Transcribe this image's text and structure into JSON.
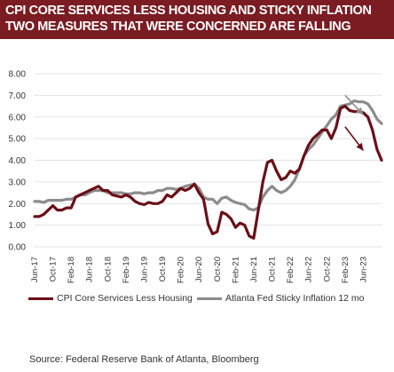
{
  "title": {
    "line1": "CPI CORE SERVICES LESS HOUSING AND STICKY INFLATION",
    "line2": "TWO MEASURES THAT WERE CONCERNED ARE FALLING"
  },
  "source": "Source: Federal Reserve Bank of Atlanta, Bloomberg",
  "colors": {
    "title_bg": "#7a1c22",
    "series1": "#6b0f17",
    "series2": "#8c8c8c",
    "grid": "#e3e3e3"
  },
  "chart_data": {
    "type": "line",
    "title": "",
    "xlabel": "",
    "ylabel": "",
    "ylim": [
      0,
      8
    ],
    "yticks": [
      "0.00",
      "1.00",
      "2.00",
      "3.00",
      "4.00",
      "5.00",
      "6.00",
      "7.00",
      "8.00"
    ],
    "xticks": [
      "Jun-17",
      "Oct-17",
      "Feb-18",
      "Jun-18",
      "Oct-18",
      "Feb-19",
      "Jun-19",
      "Oct-19",
      "Feb-20",
      "Jun-20",
      "Oct-20",
      "Feb-21",
      "Jun-21",
      "Oct-21",
      "Feb-22",
      "Jun-22",
      "Oct-22",
      "Feb-23",
      "Jun-23"
    ],
    "x_start": "Jun-17",
    "grid": true,
    "legend": "bottom",
    "series": [
      {
        "name": "CPI Core Services Less Housing",
        "color": "#6b0f17",
        "values": [
          1.4,
          1.4,
          1.5,
          1.7,
          1.9,
          1.7,
          1.7,
          1.8,
          1.8,
          2.3,
          2.4,
          2.5,
          2.6,
          2.7,
          2.8,
          2.6,
          2.6,
          2.4,
          2.35,
          2.3,
          2.4,
          2.3,
          2.1,
          2.0,
          1.95,
          2.05,
          2.0,
          2.0,
          2.1,
          2.4,
          2.3,
          2.5,
          2.7,
          2.6,
          2.7,
          2.9,
          2.5,
          2.2,
          1.05,
          0.6,
          0.7,
          1.6,
          1.5,
          1.3,
          0.9,
          1.1,
          1.0,
          0.5,
          0.4,
          1.7,
          3.0,
          3.9,
          4.0,
          3.5,
          3.1,
          3.2,
          3.5,
          3.4,
          3.6,
          4.2,
          4.7,
          5.0,
          5.2,
          5.4,
          5.4,
          5.0,
          5.5,
          6.4,
          6.5,
          6.3,
          6.25,
          6.25,
          6.2,
          6.0,
          5.4,
          4.5,
          4.0
        ]
      },
      {
        "name": "Atlanta Fed Sticky Inflation 12 mo",
        "color": "#8c8c8c",
        "values": [
          2.1,
          2.1,
          2.05,
          2.15,
          2.15,
          2.15,
          2.15,
          2.2,
          2.2,
          2.3,
          2.4,
          2.4,
          2.5,
          2.6,
          2.6,
          2.6,
          2.5,
          2.5,
          2.5,
          2.5,
          2.45,
          2.45,
          2.5,
          2.5,
          2.45,
          2.5,
          2.5,
          2.6,
          2.6,
          2.7,
          2.7,
          2.65,
          2.7,
          2.8,
          2.85,
          2.9,
          2.7,
          2.3,
          2.2,
          2.2,
          2.0,
          2.25,
          2.3,
          2.15,
          2.05,
          2.0,
          1.95,
          1.75,
          1.7,
          1.8,
          2.3,
          2.6,
          2.8,
          2.6,
          2.5,
          2.6,
          2.8,
          3.1,
          3.6,
          4.2,
          4.5,
          4.7,
          5.0,
          5.3,
          5.6,
          5.9,
          6.1,
          6.5,
          6.55,
          6.6,
          6.75,
          6.7,
          6.7,
          6.6,
          6.3,
          5.9,
          5.7
        ]
      }
    ],
    "annotations": [
      {
        "type": "arrow",
        "color": "#6b0f17",
        "from": [
          "Feb-23",
          5.55
        ],
        "to": [
          "Jun-23",
          4.45
        ]
      },
      {
        "type": "arrow",
        "color": "#8c8c8c",
        "from": [
          "Feb-23",
          7.0
        ],
        "to": [
          "Jun-23",
          6.1
        ]
      }
    ]
  }
}
